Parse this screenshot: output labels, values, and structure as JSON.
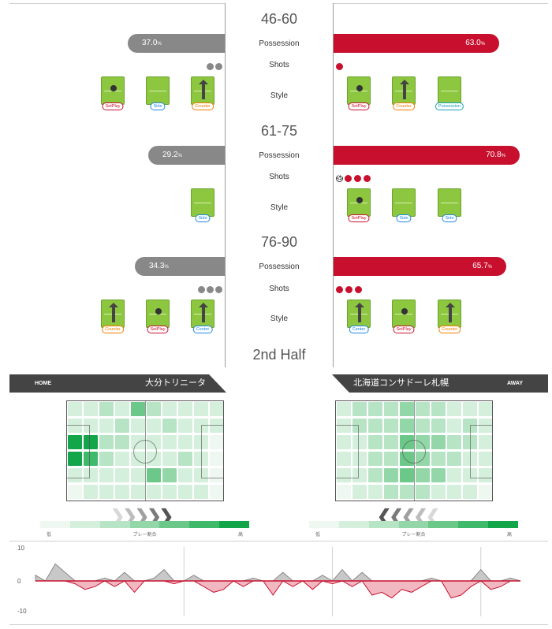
{
  "periods": [
    {
      "title": "46-60",
      "possession_label": "Possession",
      "shots_label": "Shots",
      "style_label": "Style",
      "home_possession": 37.0,
      "home_possession_text": "37.0",
      "home_possession_unit": "%",
      "away_possession": 63.0,
      "away_possession_text": "63.0",
      "away_possession_unit": "%",
      "home_shots": 2,
      "away_shots": 1,
      "away_goals": 0,
      "home_styles": [
        {
          "label": "SetPlay",
          "kind": "setplay"
        },
        {
          "label": "Side",
          "kind": "side"
        },
        {
          "label": "Counter",
          "kind": "counter"
        }
      ],
      "away_styles": [
        {
          "label": "SetPlay",
          "kind": "setplay"
        },
        {
          "label": "Counter",
          "kind": "counter"
        },
        {
          "label": "Possession",
          "kind": "possession"
        }
      ]
    },
    {
      "title": "61-75",
      "possession_label": "Possession",
      "shots_label": "Shots",
      "style_label": "Style",
      "home_possession": 29.2,
      "home_possession_text": "29.2",
      "home_possession_unit": "%",
      "away_possession": 70.8,
      "away_possession_text": "70.8",
      "away_possession_unit": "%",
      "home_shots": 0,
      "away_shots": 3,
      "away_goals": 1,
      "home_styles": [
        {
          "label": "Side",
          "kind": "side"
        }
      ],
      "away_styles": [
        {
          "label": "SetPlay",
          "kind": "setplay"
        },
        {
          "label": "Side",
          "kind": "side"
        },
        {
          "label": "Side",
          "kind": "side"
        }
      ]
    },
    {
      "title": "76-90",
      "possession_label": "Possession",
      "shots_label": "Shots",
      "style_label": "Style",
      "home_possession": 34.3,
      "home_possession_text": "34.3",
      "home_possession_unit": "%",
      "away_possession": 65.7,
      "away_possession_text": "65.7",
      "away_possession_unit": "%",
      "home_shots": 3,
      "away_shots": 3,
      "away_goals": 0,
      "home_styles": [
        {
          "label": "Counter",
          "kind": "counter"
        },
        {
          "label": "SetPlay",
          "kind": "setplay"
        },
        {
          "label": "Center",
          "kind": "center"
        }
      ],
      "away_styles": [
        {
          "label": "Center",
          "kind": "center"
        },
        {
          "label": "SetPlay",
          "kind": "setplay"
        },
        {
          "label": "Counter",
          "kind": "counter"
        }
      ]
    }
  ],
  "half_title": "2nd Half",
  "home": {
    "side_label": "HOME",
    "team_name": "大分トリニータ",
    "heatmap": [
      [
        1,
        1,
        2,
        1,
        4,
        2,
        1,
        1,
        1,
        1
      ],
      [
        1,
        1,
        1,
        2,
        1,
        1,
        2,
        1,
        1,
        1
      ],
      [
        6,
        6,
        2,
        2,
        1,
        1,
        1,
        1,
        1,
        0
      ],
      [
        6,
        5,
        2,
        1,
        1,
        1,
        1,
        2,
        1,
        0
      ],
      [
        1,
        1,
        1,
        1,
        1,
        4,
        3,
        1,
        1,
        0
      ],
      [
        0,
        1,
        1,
        1,
        1,
        1,
        1,
        1,
        1,
        0
      ]
    ]
  },
  "away": {
    "side_label": "AWAY",
    "team_name": "北海道コンサドーレ札幌",
    "heatmap": [
      [
        1,
        2,
        2,
        2,
        3,
        2,
        2,
        1,
        1,
        1
      ],
      [
        1,
        2,
        2,
        2,
        3,
        2,
        2,
        1,
        2,
        1
      ],
      [
        1,
        1,
        2,
        2,
        4,
        3,
        3,
        2,
        2,
        1
      ],
      [
        1,
        1,
        2,
        2,
        4,
        3,
        2,
        2,
        1,
        1
      ],
      [
        1,
        1,
        2,
        3,
        4,
        3,
        3,
        1,
        1,
        1
      ],
      [
        0,
        1,
        1,
        2,
        2,
        2,
        1,
        1,
        1,
        0
      ]
    ]
  },
  "colors": {
    "away_red": "#c8102e",
    "home_grey": "#888888",
    "scale": [
      "#eef8f1",
      "#d4efdc",
      "#b7e4c5",
      "#93d6a7",
      "#6cc889",
      "#3fba6b",
      "#12a54a"
    ]
  },
  "legend": {
    "low": "低",
    "mid": "プレー割合",
    "high": "高"
  },
  "chart_data": {
    "type": "area",
    "title": "",
    "ylabel": "",
    "ylim": [
      -10,
      10
    ],
    "yticks": [
      "10",
      "0",
      "-10"
    ],
    "period_breaks_min": [
      60,
      75,
      90
    ],
    "x": [
      45,
      46,
      47,
      48,
      49,
      50,
      51,
      52,
      53,
      54,
      55,
      56,
      57,
      58,
      59,
      60,
      61,
      62,
      63,
      64,
      65,
      66,
      67,
      68,
      69,
      70,
      71,
      72,
      73,
      74,
      75,
      76,
      77,
      78,
      79,
      80,
      81,
      82,
      83,
      84,
      85,
      86,
      87,
      88,
      89,
      90,
      91,
      92,
      93,
      94
    ],
    "series": [
      {
        "name": "flow",
        "values": [
          2,
          0,
          6,
          3,
          -1,
          -3,
          -2,
          1,
          -2,
          3,
          -4,
          0,
          1,
          4,
          -1,
          0,
          2,
          -2,
          -4,
          -3,
          0,
          -2,
          1,
          0,
          -5,
          3,
          -2,
          0,
          -3,
          2,
          -1,
          4,
          -2,
          3,
          -5,
          -4,
          -6,
          -3,
          -4,
          -2,
          1,
          0,
          -6,
          -5,
          -2,
          4,
          -3,
          -2,
          1,
          0
        ]
      }
    ]
  }
}
